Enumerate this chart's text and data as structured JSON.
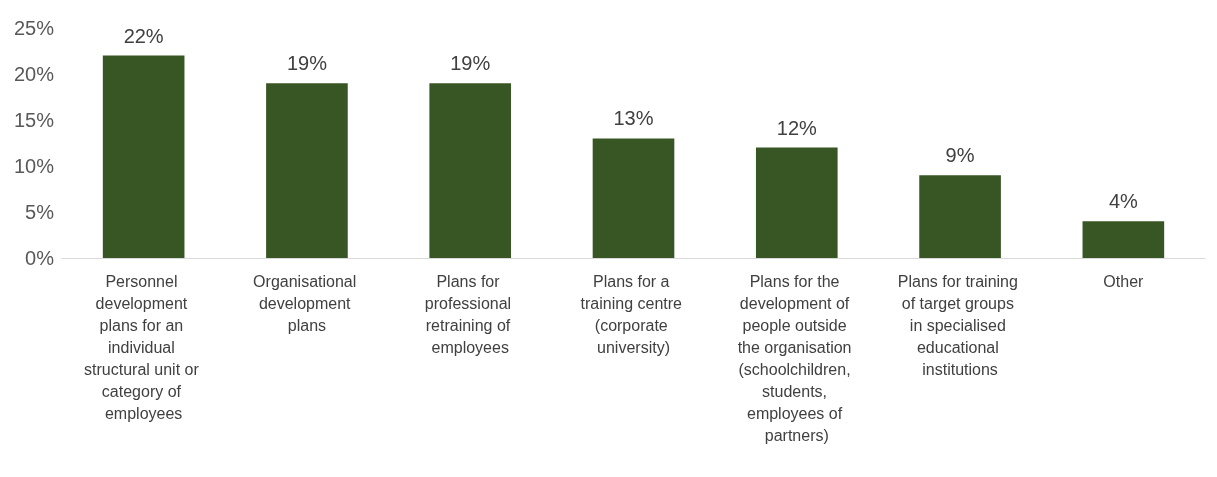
{
  "chart_data": {
    "type": "bar",
    "categories": [
      "Personnel development plans for an individual structural unit or category of employees",
      "Organisational development plans",
      "Plans for professional retraining of employees",
      "Plans for a training centre (corporate university)",
      "Plans for the development of people outside the organisation (schoolchildren, students, employees of partners)",
      "Plans for training of target groups in specialised educational institutions",
      "Other"
    ],
    "values": [
      22,
      19,
      19,
      13,
      12,
      9,
      4
    ],
    "value_labels": [
      "22%",
      "19%",
      "19%",
      "13%",
      "12%",
      "9%",
      "4%"
    ],
    "color": "#375623",
    "ylim": [
      0,
      25
    ],
    "yticks": [
      {
        "value": 0,
        "label": "0%"
      },
      {
        "value": 5,
        "label": "5%"
      },
      {
        "value": 10,
        "label": "10%"
      },
      {
        "value": 15,
        "label": "15%"
      },
      {
        "value": 20,
        "label": "20%"
      },
      {
        "value": 25,
        "label": "25%"
      }
    ],
    "grid": false
  }
}
